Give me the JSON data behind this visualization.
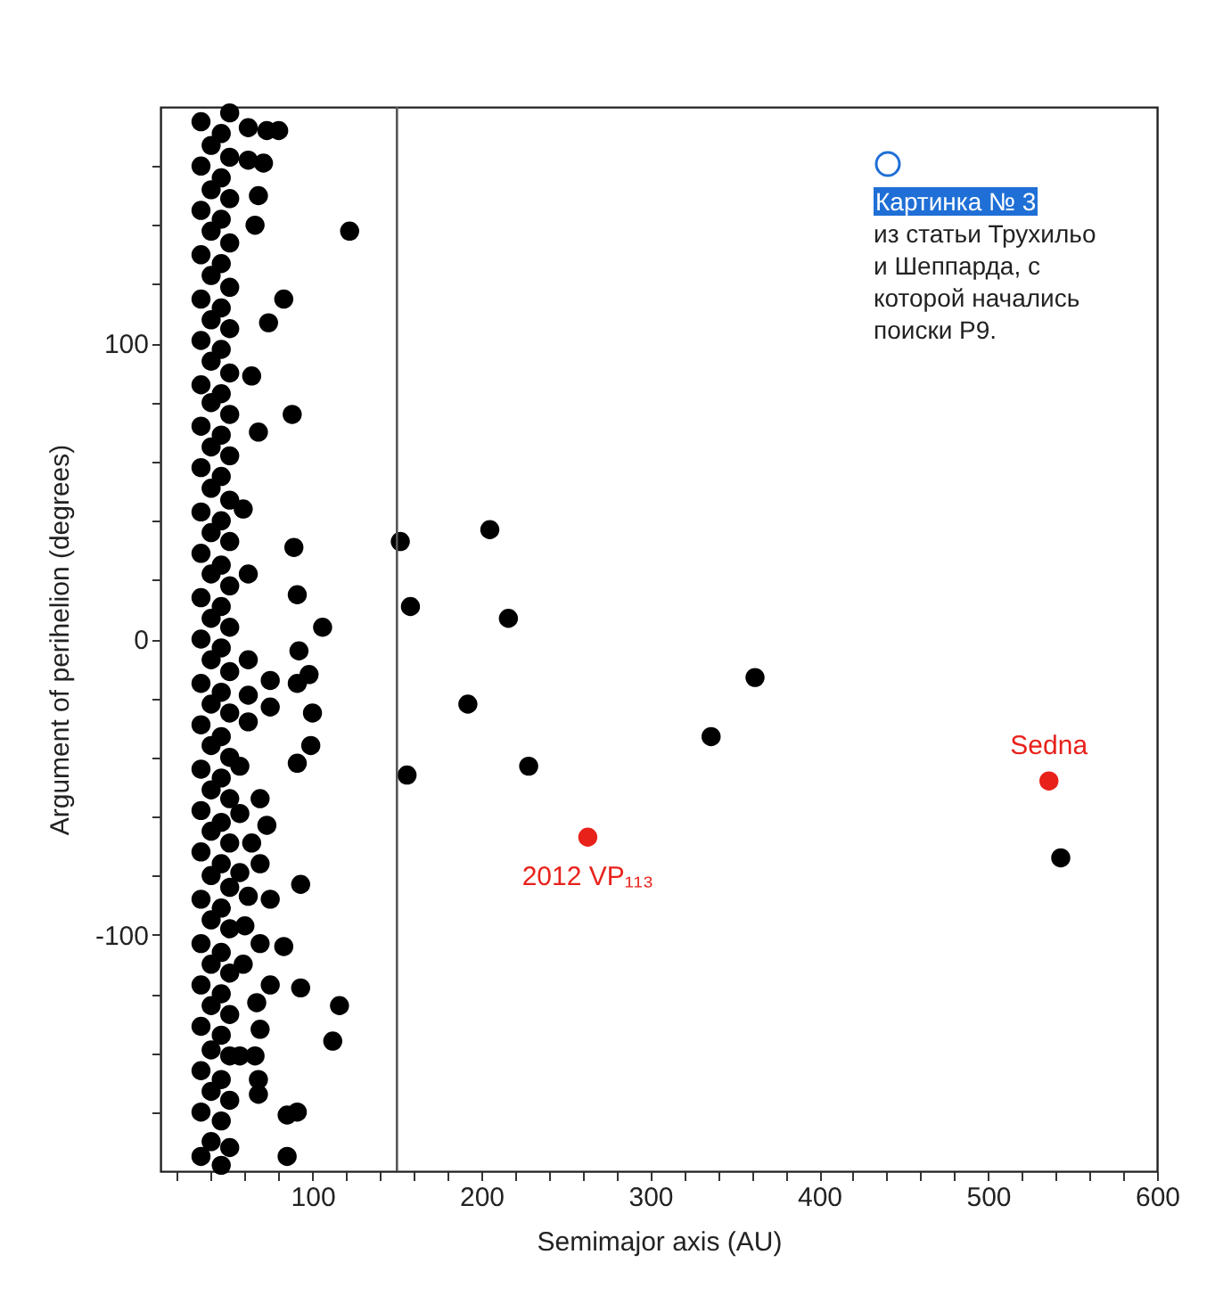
{
  "chart_data": {
    "type": "scatter",
    "xlabel": "Semimajor axis (AU)",
    "ylabel": "Argument of perihelion (degrees)",
    "xlim": [
      10,
      600
    ],
    "ylim": [
      -180,
      180
    ],
    "xticks": [
      {
        "value": 20,
        "label": null
      },
      {
        "value": 40,
        "label": null
      },
      {
        "value": 60,
        "label": null
      },
      {
        "value": 80,
        "label": null
      },
      100,
      {
        "value": 120,
        "label": null
      },
      {
        "value": 140,
        "label": null
      },
      {
        "value": 160,
        "label": null
      },
      {
        "value": 180,
        "label": null
      },
      200,
      {
        "value": 220,
        "label": null
      },
      {
        "value": 240,
        "label": null
      },
      {
        "value": 260,
        "label": null
      },
      {
        "value": 280,
        "label": null
      },
      300,
      {
        "value": 320,
        "label": null
      },
      {
        "value": 340,
        "label": null
      },
      {
        "value": 360,
        "label": null
      },
      {
        "value": 380,
        "label": null
      },
      400,
      {
        "value": 420,
        "label": null
      },
      {
        "value": 440,
        "label": null
      },
      {
        "value": 460,
        "label": null
      },
      {
        "value": 480,
        "label": null
      },
      500,
      {
        "value": 520,
        "label": null
      },
      {
        "value": 540,
        "label": null
      },
      {
        "value": 560,
        "label": null
      },
      {
        "value": 580,
        "label": null
      },
      600
    ],
    "yticks": [
      {
        "value": -160,
        "label": null
      },
      {
        "value": -140,
        "label": null
      },
      {
        "value": -120,
        "label": null
      },
      -100,
      {
        "value": -80,
        "label": null
      },
      {
        "value": -60,
        "label": null
      },
      {
        "value": -40,
        "label": null
      },
      {
        "value": -20,
        "label": null
      },
      0,
      {
        "value": 20,
        "label": null
      },
      {
        "value": 40,
        "label": null
      },
      {
        "value": 60,
        "label": null
      },
      {
        "value": 80,
        "label": null
      },
      100,
      {
        "value": 120,
        "label": null
      },
      {
        "value": 140,
        "label": null
      },
      {
        "value": 160,
        "label": null
      }
    ],
    "grid": false,
    "legend": false,
    "marker": "circle",
    "series": [
      {
        "color": "#000000",
        "x": [
          152,
          205,
          158,
          216,
          192,
          362,
          336,
          156,
          228,
          543,
          80,
          73,
          62,
          71,
          62,
          68,
          66,
          122,
          83,
          74,
          64,
          88,
          68,
          59,
          89,
          62,
          91,
          106,
          92,
          62,
          75,
          91,
          98,
          62,
          75,
          100,
          62,
          99,
          91,
          57,
          69,
          57,
          73,
          64,
          69,
          57,
          93,
          62,
          75,
          60,
          69,
          83,
          59,
          75,
          93,
          67,
          116,
          69,
          112,
          57,
          66,
          68,
          68,
          85,
          91,
          85,
          34,
          34,
          34,
          34,
          34,
          34,
          34,
          34,
          34,
          34,
          34,
          34,
          34,
          34,
          34,
          34,
          34,
          34,
          34,
          34,
          34,
          34,
          34,
          34,
          34,
          40,
          40,
          40,
          40,
          40,
          40,
          40,
          40,
          40,
          40,
          40,
          40,
          40,
          40,
          40,
          40,
          40,
          40,
          40,
          40,
          40,
          40,
          40,
          40,
          46,
          46,
          46,
          46,
          46,
          46,
          46,
          46,
          46,
          46,
          46,
          46,
          46,
          46,
          46,
          46,
          46,
          46,
          46,
          46,
          46,
          46,
          46,
          46,
          46,
          51,
          51,
          51,
          51,
          51,
          51,
          51,
          51,
          51,
          51,
          51,
          51,
          51,
          51,
          51,
          51,
          51,
          51,
          51,
          51,
          51,
          51,
          51,
          51,
          51
        ],
        "values": [
          33,
          37,
          11,
          7,
          -22,
          -13,
          -33,
          -46,
          -43,
          -74,
          172,
          172,
          173,
          161,
          162,
          150,
          140,
          138,
          115,
          107,
          89,
          76,
          70,
          44,
          31,
          22,
          15,
          4,
          -4,
          -7,
          -14,
          -15,
          -12,
          -19,
          -23,
          -25,
          -28,
          -36,
          -42,
          -43,
          -54,
          -59,
          -63,
          -69,
          -76,
          -79,
          -83,
          -87,
          -88,
          -97,
          -103,
          -104,
          -110,
          -117,
          -118,
          -123,
          -124,
          -132,
          -136,
          -141,
          -141,
          -149,
          -154,
          -161,
          -160,
          -175,
          -175,
          -160,
          -146,
          -131,
          -117,
          -103,
          -88,
          -72,
          -58,
          -44,
          -29,
          -15,
          0,
          14,
          29,
          43,
          58,
          72,
          86,
          101,
          115,
          130,
          145,
          160,
          175,
          -170,
          -153,
          -139,
          -124,
          -110,
          -95,
          -80,
          -65,
          -51,
          -36,
          -22,
          -7,
          7,
          22,
          36,
          51,
          65,
          80,
          94,
          108,
          123,
          138,
          152,
          167,
          -178,
          -163,
          -149,
          -134,
          -120,
          -106,
          -91,
          -76,
          -62,
          -47,
          -33,
          -18,
          -3,
          11,
          25,
          40,
          55,
          69,
          83,
          98,
          112,
          127,
          142,
          156,
          171,
          -172,
          -156,
          -141,
          -127,
          -113,
          -98,
          -84,
          -69,
          -54,
          -40,
          -25,
          -11,
          4,
          18,
          33,
          47,
          62,
          76,
          90,
          105,
          119,
          134,
          149,
          163,
          178
        ]
      },
      {
        "color": "#e8221b",
        "x": [
          263,
          536
        ],
        "values": [
          -67,
          -48
        ]
      }
    ],
    "ref_lines": [
      {
        "axis": "x",
        "value": 150,
        "color": "#555555"
      }
    ],
    "annotations": [
      {
        "text": "2012 VP₁₁₃",
        "x": 263,
        "y": -67
      },
      {
        "text": "Sedna",
        "x": 536,
        "y": -48
      },
      "Картинка № 3",
      "из статьи Трухильо и Шеппарда, с которой начались поиски P9."
    ]
  }
}
